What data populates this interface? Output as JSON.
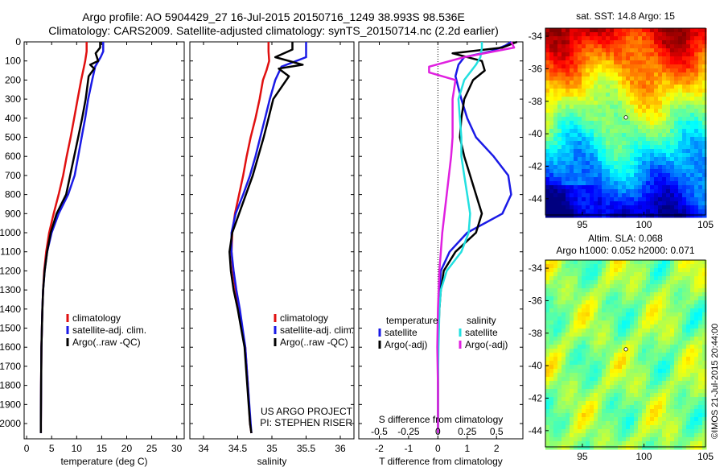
{
  "header": {
    "title_line1": "Argo profile: AO 5904429_27 16-Jul-2015 20150716_1249 38.993S 98.536E",
    "title_line2": "Climatology: CARS2009. Satellite-adjusted climatology: synTS_20150714.nc (2.2d earlier)"
  },
  "stamp": "©IMOS 21-Jul-2015 20:44:00",
  "colors": {
    "climatology": "#e01010",
    "satellite": "#1a1ae6",
    "argo": "#000000",
    "sal_satellite": "#22e0e0",
    "sal_argo": "#e020e0"
  },
  "chart_data": [
    {
      "type": "line",
      "xlabel": "temperature (deg C)",
      "ylabel": "",
      "xlim": [
        -0.5,
        31.5
      ],
      "ylim": [
        2080,
        0
      ],
      "xticks": [
        0,
        5,
        10,
        15,
        20,
        25,
        30
      ],
      "yticks": [
        0,
        100,
        200,
        300,
        400,
        500,
        600,
        700,
        800,
        900,
        1000,
        1100,
        1200,
        1300,
        1400,
        1500,
        1600,
        1700,
        1800,
        1900,
        2000
      ],
      "legend": [
        "climatology",
        "satellite-adj. clim.",
        "Argo(..raw -QC)"
      ],
      "series": [
        {
          "name": "climatology",
          "color": "#e01010",
          "x": [
            12,
            12,
            11.7,
            11.3,
            10.9,
            10.2,
            9.5,
            8.8,
            8,
            7.3,
            6.4,
            5.4,
            4.5,
            3.9,
            3.5,
            3.3,
            3.15,
            3.05,
            2.95,
            2.9,
            2.85,
            2.85
          ],
          "y": [
            0,
            50,
            100,
            150,
            200,
            300,
            400,
            500,
            600,
            700,
            800,
            900,
            1000,
            1100,
            1200,
            1300,
            1400,
            1500,
            1600,
            1800,
            2000,
            2050
          ]
        },
        {
          "name": "satellite-adj. clim.",
          "color": "#1a1ae6",
          "x": [
            15.3,
            15.3,
            14.8,
            13.7,
            13.1,
            12.3,
            11.7,
            11,
            10.3,
            9.6,
            8.3,
            6.4,
            5,
            4.1,
            3.6,
            3.3,
            3.15,
            3.05,
            2.95,
            2.9,
            2.85,
            2.85
          ],
          "y": [
            0,
            50,
            80,
            130,
            200,
            300,
            400,
            500,
            600,
            700,
            800,
            900,
            1000,
            1100,
            1200,
            1300,
            1400,
            1500,
            1600,
            1800,
            2000,
            2050
          ]
        },
        {
          "name": "Argo(..raw -QC)",
          "color": "#000000",
          "x": [
            14.7,
            14.7,
            13.8,
            14.3,
            12.7,
            13.5,
            12.4,
            11.8,
            11.1,
            10.3,
            9.5,
            7.9,
            6,
            4.8,
            4.1,
            3.6,
            3.3,
            3.15,
            3.05,
            2.95,
            2.9,
            2.85,
            2.85
          ],
          "y": [
            0,
            30,
            60,
            100,
            120,
            140,
            180,
            300,
            400,
            500,
            600,
            800,
            900,
            1000,
            1100,
            1200,
            1300,
            1400,
            1500,
            1600,
            1800,
            2000,
            2050
          ]
        }
      ],
      "annotations": []
    },
    {
      "type": "line",
      "xlabel": "salinity",
      "ylabel": "",
      "xlim": [
        33.8,
        36.2
      ],
      "ylim": [
        2080,
        0
      ],
      "xticks": [
        34,
        34.5,
        35,
        35.5,
        36
      ],
      "yticks": [],
      "legend": [
        "climatology",
        "satellite-adj. clim.",
        "Argo(..raw -QC)"
      ],
      "series": [
        {
          "name": "climatology",
          "color": "#e01010",
          "x": [
            34.95,
            34.95,
            34.96,
            34.92,
            34.87,
            34.82,
            34.76,
            34.69,
            34.63,
            34.58,
            34.52,
            34.46,
            34.42,
            34.41,
            34.43,
            34.47,
            34.52,
            34.56,
            34.61,
            34.65,
            34.68,
            34.7
          ],
          "y": [
            0,
            50,
            100,
            150,
            200,
            300,
            400,
            500,
            600,
            700,
            800,
            900,
            1000,
            1100,
            1200,
            1300,
            1400,
            1500,
            1600,
            1800,
            2000,
            2050
          ]
        },
        {
          "name": "satellite-adj. clim.",
          "color": "#1a1ae6",
          "x": [
            35.5,
            35.5,
            35.5,
            35.14,
            35.05,
            34.97,
            34.9,
            34.83,
            34.76,
            34.68,
            34.58,
            34.47,
            34.41,
            34.41,
            34.44,
            34.48,
            34.53,
            34.57,
            34.61,
            34.65,
            34.69,
            34.7
          ],
          "y": [
            0,
            50,
            80,
            130,
            200,
            300,
            400,
            500,
            600,
            700,
            800,
            900,
            1000,
            1100,
            1200,
            1300,
            1400,
            1500,
            1600,
            1800,
            2000,
            2050
          ]
        },
        {
          "name": "Argo(..raw -QC)",
          "color": "#000000",
          "x": [
            35.3,
            35.3,
            35.05,
            35.45,
            35.1,
            35.25,
            35.02,
            34.95,
            34.88,
            34.8,
            34.72,
            34.52,
            34.42,
            34.38,
            34.4,
            34.44,
            34.5,
            34.55,
            34.6,
            34.64,
            34.68,
            34.7
          ],
          "y": [
            0,
            40,
            80,
            120,
            140,
            180,
            300,
            400,
            500,
            600,
            700,
            900,
            1000,
            1100,
            1200,
            1300,
            1400,
            1500,
            1600,
            1800,
            2000,
            2050
          ]
        }
      ],
      "annotations": [
        "US ARGO PROJECT",
        "PI: STEPHEN RISER"
      ]
    },
    {
      "type": "line",
      "xlabel": "T difference from climatology",
      "x2label": "S difference from climatology",
      "ylabel": "",
      "xlim": [
        -2.7,
        2.9
      ],
      "ylim": [
        2080,
        0
      ],
      "xticks": [
        -2,
        -1,
        0,
        1,
        2
      ],
      "x2ticks": [
        "-0.5",
        "-0.25",
        "0",
        "0.25",
        "0.5"
      ],
      "yticks": [],
      "legend_groups": [
        {
          "heading": "temperature",
          "items": [
            "satellite",
            "Argo(-adj)"
          ]
        },
        {
          "heading": "salinity",
          "items": [
            "satellite",
            "Argo(-adj)"
          ]
        }
      ],
      "series": [
        {
          "name": "temperature satellite",
          "color": "#1a1ae6",
          "x": [
            2.5,
            2.3,
            1.8,
            0.9,
            0.7,
            0.6,
            0.8,
            1,
            1.3,
            1.9,
            2.4,
            2.5,
            2.2,
            1,
            0.4,
            0.1,
            0.05,
            0.02,
            0,
            0,
            0
          ],
          "y": [
            0,
            20,
            50,
            80,
            120,
            180,
            300,
            400,
            500,
            600,
            700,
            800,
            900,
            1000,
            1100,
            1200,
            1300,
            1400,
            1600,
            1800,
            2050
          ]
        },
        {
          "name": "temperature Argo(-adj)",
          "color": "#000000",
          "x": [
            2.7,
            2.2,
            0.5,
            1.5,
            1.6,
            1.2,
            0.9,
            0.8,
            0.75,
            0.9,
            1.1,
            1.3,
            1.5,
            1.3,
            0.6,
            0.2,
            0.1,
            0.05,
            0,
            0,
            0
          ],
          "y": [
            0,
            30,
            60,
            100,
            150,
            200,
            300,
            400,
            500,
            600,
            700,
            800,
            900,
            1000,
            1100,
            1200,
            1300,
            1400,
            1600,
            1800,
            2050
          ]
        },
        {
          "name": "salinity satellite",
          "color": "#22e0e0",
          "x": [
            1.5,
            1.5,
            1.45,
            1.3,
            0.9,
            0.7,
            0.75,
            0.8,
            0.8,
            0.9,
            1,
            1.1,
            1.05,
            0.8,
            0.3,
            0.1,
            0.05,
            0.02,
            0,
            0
          ],
          "y": [
            0,
            30,
            80,
            120,
            200,
            300,
            400,
            500,
            600,
            700,
            800,
            900,
            1000,
            1100,
            1200,
            1300,
            1400,
            1600,
            1800,
            2050
          ]
        },
        {
          "name": "salinity Argo(-adj)",
          "color": "#e020e0",
          "x": [
            2.5,
            2.6,
            0.9,
            -0.3,
            -0.3,
            0.6,
            0.5,
            0.5,
            0.5,
            0.45,
            0.3,
            0.15,
            0.05,
            0,
            -0.02,
            0,
            0,
            0
          ],
          "y": [
            0,
            30,
            80,
            130,
            160,
            200,
            300,
            400,
            500,
            600,
            800,
            1000,
            1200,
            1400,
            1600,
            1800,
            2000,
            2050
          ]
        }
      ],
      "annotations": []
    },
    {
      "type": "heatmap",
      "title": "sat. SST: 14.8 Argo: 15",
      "xlim": [
        92,
        105
      ],
      "ylim": [
        -45,
        -33.5
      ],
      "xticks": [
        95,
        100,
        105
      ],
      "yticks": [
        -34,
        -36,
        -38,
        -40,
        -42,
        -44
      ],
      "colorscale": "jet",
      "marker": {
        "x": 98.536,
        "y": -38.993
      }
    },
    {
      "type": "heatmap",
      "title_line1": "Altim. SLA: 0.068",
      "title_line2": "Argo h1000: 0.052 h2000: 0.071",
      "xlim": [
        92,
        105
      ],
      "ylim": [
        -45,
        -33.5
      ],
      "xticks": [
        95,
        100,
        105
      ],
      "yticks": [
        -34,
        -36,
        -38,
        -40,
        -42,
        -44
      ],
      "colorscale": "jet",
      "marker": {
        "x": 98.536,
        "y": -38.993
      }
    }
  ]
}
